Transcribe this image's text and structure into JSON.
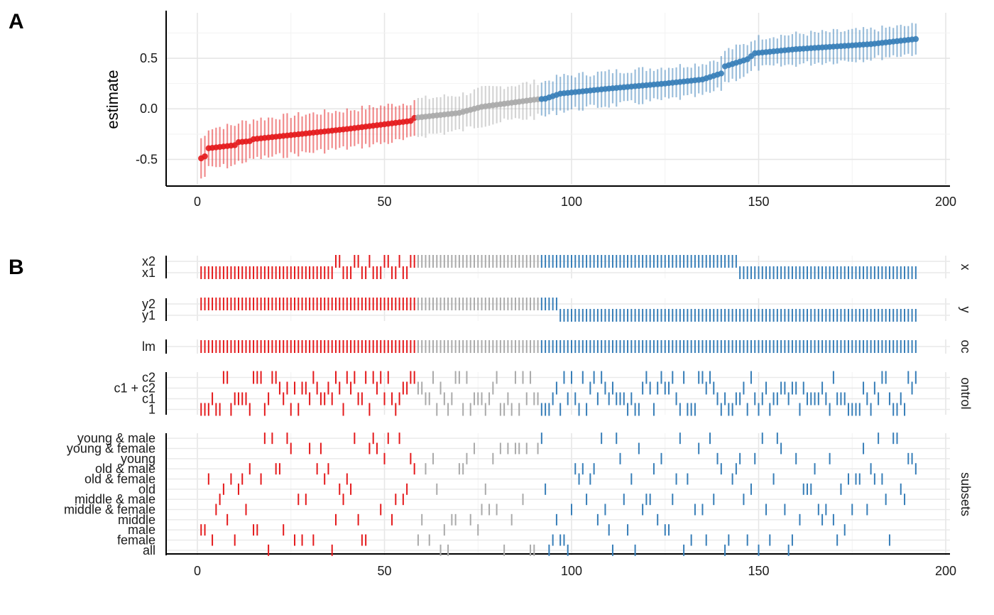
{
  "chart_data": [
    {
      "panel": "A",
      "type": "scatter",
      "ylabel": "estimate",
      "xlim": [
        0,
        200
      ],
      "ylim": [
        -0.75,
        0.95
      ],
      "x_ticks": [
        "0",
        "50",
        "100",
        "150",
        "200"
      ],
      "y_ticks": [
        {
          "value": 0.5,
          "label": "0.5"
        },
        {
          "value": 0.0,
          "label": "0.0"
        },
        {
          "value": -0.5,
          "label": "-0.5"
        }
      ],
      "grid": true,
      "n": 192,
      "estimates": [
        {
          "index": 1,
          "value": -0.49
        },
        {
          "index": 2,
          "value": -0.47
        },
        {
          "index": 3,
          "value": -0.39
        },
        {
          "index": 10,
          "value": -0.36
        },
        {
          "index": 11,
          "value": -0.33
        },
        {
          "index": 14,
          "value": -0.32
        },
        {
          "index": 15,
          "value": -0.3
        },
        {
          "index": 30,
          "value": -0.24
        },
        {
          "index": 40,
          "value": -0.2
        },
        {
          "index": 57,
          "value": -0.12
        },
        {
          "index": 58,
          "value": -0.09
        },
        {
          "index": 70,
          "value": -0.04
        },
        {
          "index": 76,
          "value": 0.02
        },
        {
          "index": 90,
          "value": 0.09
        },
        {
          "index": 93,
          "value": 0.1
        },
        {
          "index": 97,
          "value": 0.15
        },
        {
          "index": 110,
          "value": 0.2
        },
        {
          "index": 125,
          "value": 0.25
        },
        {
          "index": 135,
          "value": 0.29
        },
        {
          "index": 140,
          "value": 0.35
        },
        {
          "index": 141,
          "value": 0.42
        },
        {
          "index": 147,
          "value": 0.49
        },
        {
          "index": 149,
          "value": 0.55
        },
        {
          "index": 160,
          "value": 0.59
        },
        {
          "index": 180,
          "value": 0.64
        },
        {
          "index": 192,
          "value": 0.69
        }
      ],
      "ci_half_width_start": 0.2,
      "ci_half_width_end": 0.14,
      "colors": {
        "negative": "#e41a1c",
        "null": "#aaaaaa",
        "positive": "#377eb8"
      },
      "color_breaks": {
        "red_until": 58,
        "blue_from": 92
      }
    },
    {
      "panel": "B",
      "type": "table",
      "xlim": [
        0,
        200
      ],
      "x_ticks": [
        "0",
        "50",
        "100",
        "150",
        "200"
      ],
      "facets": [
        {
          "strip": "x",
          "levels": [
            "x2",
            "x1"
          ]
        },
        {
          "strip": "y",
          "levels": [
            "y2",
            "y1"
          ]
        },
        {
          "strip": "oc",
          "levels": [
            "lm"
          ]
        },
        {
          "strip": "ontrol",
          "levels": [
            "c2",
            "c1 + c2",
            "c1",
            "1"
          ]
        },
        {
          "strip": "subsets",
          "levels": [
            "young & male",
            "young & female",
            "young",
            "old & male",
            "old & female",
            "old",
            "middle & male",
            "middle & female",
            "middle",
            "male",
            "female",
            "all"
          ]
        }
      ]
    }
  ],
  "labels": {
    "panel_a": "A",
    "panel_b": "B"
  }
}
